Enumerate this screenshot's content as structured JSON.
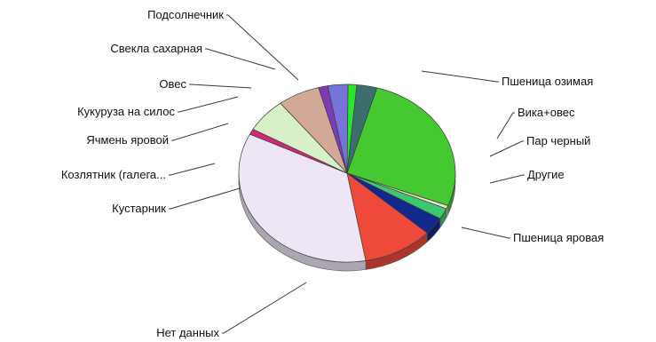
{
  "chart_data": {
    "type": "pie",
    "title": "",
    "style": "3d",
    "legend": "none",
    "slices": [
      {
        "label": "Пшеница озимая",
        "value": 26.5,
        "color": "#46C832"
      },
      {
        "label": "Вика+овес",
        "value": 0.6,
        "color": "#E8E8C8"
      },
      {
        "label": "Пар черный",
        "value": 2.0,
        "color": "#3CC86E"
      },
      {
        "label": "Другие",
        "value": 3.2,
        "color": "#12288C"
      },
      {
        "label": "Пшеница яровая",
        "value": 10.5,
        "color": "#EE4A3C"
      },
      {
        "label": "Нет данных",
        "value": 35.0,
        "color": "#EEE6F4"
      },
      {
        "label": "Кустарник",
        "value": 1.0,
        "color": "#D22878"
      },
      {
        "label": "Козлятник (галега...",
        "value": 6.2,
        "color": "#D8F0C8"
      },
      {
        "label": "Ячмень яровой",
        "value": 6.3,
        "color": "#D2A896"
      },
      {
        "label": "Кукуруза на силос",
        "value": 1.4,
        "color": "#7E3CB4"
      },
      {
        "label": "Овес",
        "value": 3.0,
        "color": "#7873D8"
      },
      {
        "label": "Свекла сахарная",
        "value": 1.3,
        "color": "#28E628"
      },
      {
        "label": "Подсолнечник",
        "value": 3.0,
        "color": "#3C6E6E"
      }
    ]
  }
}
